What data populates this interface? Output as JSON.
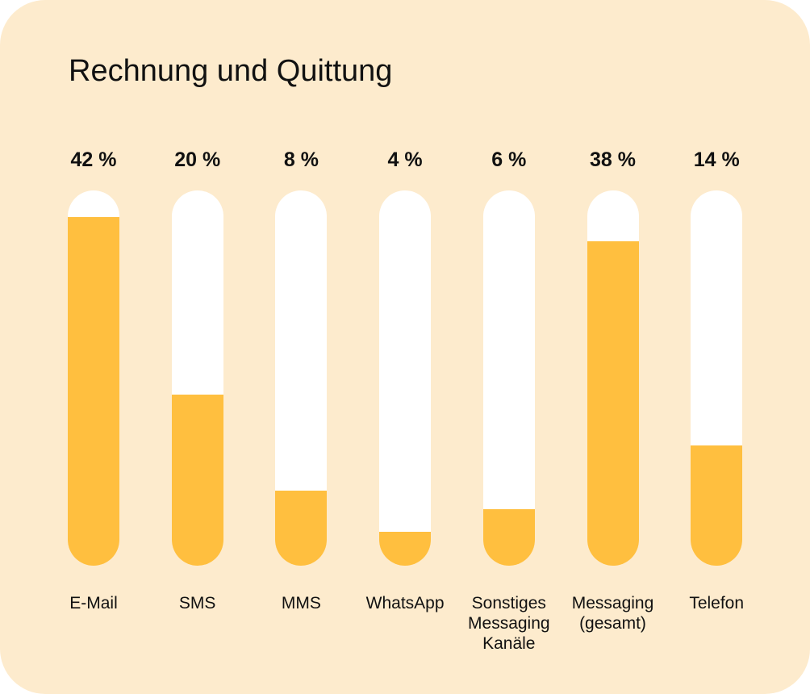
{
  "chart_data": {
    "type": "bar",
    "title": "Rechnung und Quittung",
    "xlabel": "",
    "ylabel": "",
    "grid": false,
    "colors": {
      "background": "#fdebcd",
      "track": "#ffffff",
      "fill": "#ffbf3f",
      "text": "#111111"
    },
    "bars": [
      {
        "category_lines": [
          "E-Mail"
        ],
        "value": 42,
        "value_label": "42 %",
        "fill_fraction": 0.93
      },
      {
        "category_lines": [
          "SMS"
        ],
        "value": 20,
        "value_label": "20 %",
        "fill_fraction": 0.455
      },
      {
        "category_lines": [
          "MMS"
        ],
        "value": 8,
        "value_label": "8 %",
        "fill_fraction": 0.2
      },
      {
        "category_lines": [
          "WhatsApp"
        ],
        "value": 4,
        "value_label": "4 %",
        "fill_fraction": 0.09
      },
      {
        "category_lines": [
          "Sonstiges",
          "Messaging",
          "Kanäle"
        ],
        "value": 6,
        "value_label": "6 %",
        "fill_fraction": 0.15
      },
      {
        "category_lines": [
          "Messaging",
          "(gesamt)"
        ],
        "value": 38,
        "value_label": "38 %",
        "fill_fraction": 0.865
      },
      {
        "category_lines": [
          "Telefon"
        ],
        "value": 14,
        "value_label": "14 %",
        "fill_fraction": 0.32
      }
    ]
  }
}
